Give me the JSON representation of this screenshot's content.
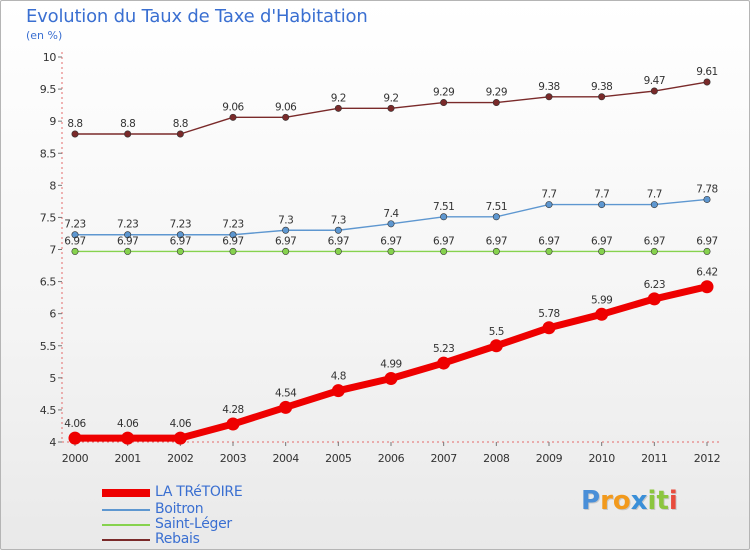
{
  "chart_data": {
    "type": "line",
    "title": "Evolution du Taux de Taxe d'Habitation",
    "subtitle": "(en %)",
    "x": [
      2000,
      2001,
      2002,
      2003,
      2004,
      2005,
      2006,
      2007,
      2008,
      2009,
      2010,
      2011,
      2012
    ],
    "x_tick_labels": [
      "2000",
      "2001",
      "2002",
      "2003",
      "2004",
      "2005",
      "2006",
      "2007",
      "2008",
      "2009",
      "2010",
      "2011",
      "2012"
    ],
    "ylim": [
      4,
      10
    ],
    "y_ticks": [
      4,
      4.5,
      5,
      5.5,
      6,
      6.5,
      7,
      7.5,
      8,
      8.5,
      9,
      9.5,
      10
    ],
    "y_tick_labels": [
      "4",
      "4.5",
      "5",
      "5.5",
      "6",
      "6.5",
      "7",
      "7.5",
      "8",
      "8.5",
      "9",
      "9.5",
      "10"
    ],
    "grid": false,
    "legend_position": "bottom-left",
    "series": [
      {
        "name": "LA TRéTOIRE",
        "color": "#ee0000",
        "values": [
          4.06,
          4.06,
          4.06,
          4.28,
          4.54,
          4.8,
          4.99,
          5.23,
          5.5,
          5.78,
          5.99,
          6.23,
          6.42
        ],
        "labels": [
          "4.06",
          "4.06",
          "4.06",
          "4.28",
          "4.54",
          "4.8",
          "4.99",
          "5.23",
          "5.5",
          "5.78",
          "5.99",
          "6.23",
          "6.42"
        ]
      },
      {
        "name": "Boitron",
        "color": "#5e97d0",
        "values": [
          7.23,
          7.23,
          7.23,
          7.23,
          7.3,
          7.3,
          7.4,
          7.51,
          7.51,
          7.7,
          7.7,
          7.7,
          7.78
        ],
        "labels": [
          "7.23",
          "7.23",
          "7.23",
          "7.23",
          "7.3",
          "7.3",
          "7.4",
          "7.51",
          "7.51",
          "7.7",
          "7.7",
          "7.7",
          "7.78"
        ]
      },
      {
        "name": "Saint-Léger",
        "color": "#86d24e",
        "values": [
          6.97,
          6.97,
          6.97,
          6.97,
          6.97,
          6.97,
          6.97,
          6.97,
          6.97,
          6.97,
          6.97,
          6.97,
          6.97
        ],
        "labels": [
          "6.97",
          "6.97",
          "6.97",
          "6.97",
          "6.97",
          "6.97",
          "6.97",
          "6.97",
          "6.97",
          "6.97",
          "6.97",
          "6.97",
          "6.97"
        ]
      },
      {
        "name": "Rebais",
        "color": "#7a2a2a",
        "values": [
          8.8,
          8.8,
          8.8,
          9.06,
          9.06,
          9.2,
          9.2,
          9.29,
          9.29,
          9.38,
          9.38,
          9.47,
          9.61
        ],
        "labels": [
          "8.8",
          "8.8",
          "8.8",
          "9.06",
          "9.06",
          "9.2",
          "9.2",
          "9.29",
          "9.29",
          "9.38",
          "9.38",
          "9.47",
          "9.61"
        ]
      }
    ]
  },
  "logo": {
    "letters": [
      "P",
      "r",
      "o",
      "x",
      "i",
      "t",
      "i"
    ],
    "colors": [
      "#4a8fd8",
      "#f29a1d",
      "#f29a1d",
      "#3a8fd8",
      "#8cc63f",
      "#8cc63f",
      "#e84c3d"
    ]
  }
}
